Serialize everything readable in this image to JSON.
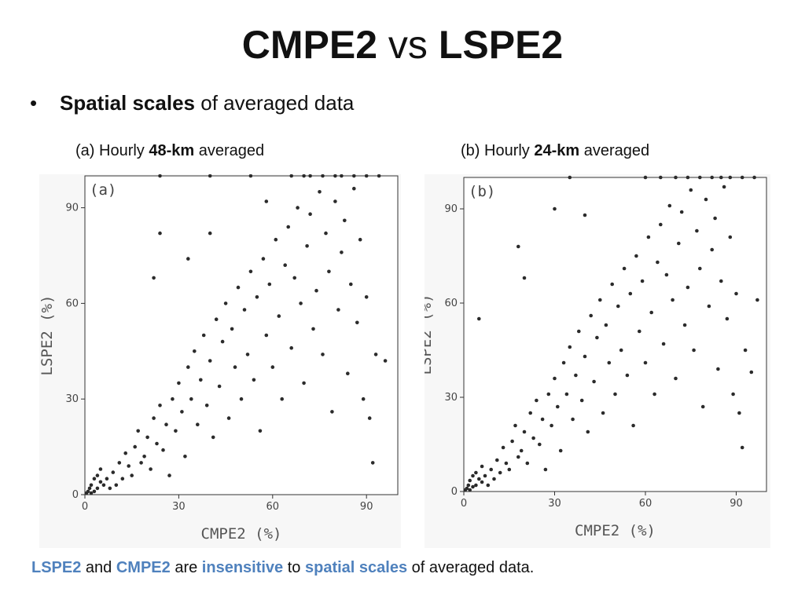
{
  "slide": {
    "title_a": "CMPE2",
    "title_vs": "vs",
    "title_b": "LSPE2",
    "bullet_symbol": "•",
    "bullet_bold": "Spatial scales",
    "bullet_rest": "of averaged data",
    "sub_a_pre": "(a) Hourly",
    "sub_a_bold": "48-km",
    "sub_a_post": "averaged",
    "sub_b_pre": "(b) Hourly",
    "sub_b_bold": "24-km",
    "sub_b_post": "averaged",
    "footer": {
      "w1": "LSPE2",
      "w2": "and",
      "w3": "CMPE2",
      "w4": "are",
      "w5": "insensitive",
      "w6": "to",
      "w7": "spatial scales",
      "w8": "of averaged data."
    },
    "accent_color": "#4f81bd"
  },
  "chart_data": [
    {
      "type": "scatter",
      "panel_label": "(a)",
      "xlabel": "CMPE2 (%)",
      "ylabel": "LSPE2 (%)",
      "xlim": [
        0,
        100
      ],
      "ylim": [
        0,
        100
      ],
      "xticks": [
        0,
        30,
        60,
        90
      ],
      "yticks": [
        0,
        30,
        60,
        90
      ],
      "grid": false,
      "points": [
        [
          0.5,
          0.5
        ],
        [
          1,
          1
        ],
        [
          2,
          0.5
        ],
        [
          3,
          1
        ],
        [
          1.5,
          2
        ],
        [
          4,
          2
        ],
        [
          2,
          3
        ],
        [
          5,
          4
        ],
        [
          3,
          5
        ],
        [
          6,
          3
        ],
        [
          4,
          6
        ],
        [
          7,
          5
        ],
        [
          8,
          2
        ],
        [
          5,
          8
        ],
        [
          10,
          3
        ],
        [
          9,
          7
        ],
        [
          11,
          10
        ],
        [
          12,
          5
        ],
        [
          14,
          9
        ],
        [
          13,
          13
        ],
        [
          15,
          6
        ],
        [
          16,
          15
        ],
        [
          18,
          10
        ],
        [
          17,
          20
        ],
        [
          19,
          12
        ],
        [
          20,
          18
        ],
        [
          21,
          8
        ],
        [
          22,
          24
        ],
        [
          23,
          16
        ],
        [
          24,
          28
        ],
        [
          25,
          14
        ],
        [
          26,
          22
        ],
        [
          27,
          6
        ],
        [
          28,
          30
        ],
        [
          29,
          20
        ],
        [
          30,
          35
        ],
        [
          31,
          26
        ],
        [
          32,
          12
        ],
        [
          33,
          40
        ],
        [
          34,
          30
        ],
        [
          35,
          45
        ],
        [
          36,
          22
        ],
        [
          37,
          36
        ],
        [
          38,
          50
        ],
        [
          39,
          28
        ],
        [
          40,
          42
        ],
        [
          41,
          18
        ],
        [
          42,
          55
        ],
        [
          43,
          34
        ],
        [
          44,
          48
        ],
        [
          45,
          60
        ],
        [
          46,
          24
        ],
        [
          47,
          52
        ],
        [
          48,
          40
        ],
        [
          49,
          65
        ],
        [
          50,
          30
        ],
        [
          51,
          58
        ],
        [
          52,
          44
        ],
        [
          53,
          70
        ],
        [
          54,
          36
        ],
        [
          55,
          62
        ],
        [
          56,
          20
        ],
        [
          57,
          74
        ],
        [
          58,
          50
        ],
        [
          59,
          66
        ],
        [
          60,
          40
        ],
        [
          61,
          80
        ],
        [
          62,
          56
        ],
        [
          63,
          30
        ],
        [
          64,
          72
        ],
        [
          65,
          84
        ],
        [
          66,
          46
        ],
        [
          67,
          68
        ],
        [
          68,
          90
        ],
        [
          69,
          60
        ],
        [
          70,
          35
        ],
        [
          71,
          78
        ],
        [
          72,
          88
        ],
        [
          73,
          52
        ],
        [
          74,
          64
        ],
        [
          75,
          95
        ],
        [
          76,
          44
        ],
        [
          77,
          82
        ],
        [
          78,
          70
        ],
        [
          79,
          26
        ],
        [
          80,
          92
        ],
        [
          81,
          58
        ],
        [
          82,
          76
        ],
        [
          83,
          86
        ],
        [
          84,
          38
        ],
        [
          85,
          66
        ],
        [
          86,
          96
        ],
        [
          87,
          54
        ],
        [
          88,
          80
        ],
        [
          89,
          30
        ],
        [
          90,
          62
        ],
        [
          91,
          24
        ],
        [
          92,
          10
        ],
        [
          93,
          44
        ],
        [
          94,
          100
        ],
        [
          96,
          42
        ],
        [
          22,
          68
        ],
        [
          24,
          82
        ],
        [
          33,
          74
        ],
        [
          40,
          82
        ],
        [
          58,
          92
        ],
        [
          66,
          100
        ],
        [
          70,
          100
        ],
        [
          72,
          100
        ],
        [
          76,
          100
        ],
        [
          80,
          100
        ],
        [
          82,
          100
        ],
        [
          86,
          100
        ],
        [
          90,
          100
        ],
        [
          24,
          100
        ],
        [
          40,
          100
        ],
        [
          53,
          100
        ]
      ]
    },
    {
      "type": "scatter",
      "panel_label": "(b)",
      "xlabel": "CMPE2 (%)",
      "ylabel": "LSPE2 (%)",
      "xlim": [
        0,
        100
      ],
      "ylim": [
        0,
        100
      ],
      "xticks": [
        0,
        30,
        60,
        90
      ],
      "yticks": [
        0,
        30,
        60,
        90
      ],
      "grid": false,
      "points": [
        [
          0.5,
          0.5
        ],
        [
          1,
          1
        ],
        [
          2,
          0.5
        ],
        [
          3,
          1.5
        ],
        [
          1.5,
          2
        ],
        [
          4,
          2
        ],
        [
          2,
          3.5
        ],
        [
          5,
          4
        ],
        [
          3,
          5
        ],
        [
          6,
          3
        ],
        [
          4,
          6
        ],
        [
          7,
          5
        ],
        [
          8,
          2
        ],
        [
          6,
          8
        ],
        [
          10,
          4
        ],
        [
          9,
          7
        ],
        [
          11,
          10
        ],
        [
          12,
          6
        ],
        [
          14,
          9
        ],
        [
          13,
          14
        ],
        [
          15,
          7
        ],
        [
          16,
          16
        ],
        [
          18,
          11
        ],
        [
          17,
          21
        ],
        [
          19,
          13
        ],
        [
          20,
          19
        ],
        [
          21,
          9
        ],
        [
          22,
          25
        ],
        [
          23,
          17
        ],
        [
          24,
          29
        ],
        [
          25,
          15
        ],
        [
          26,
          23
        ],
        [
          27,
          7
        ],
        [
          28,
          31
        ],
        [
          29,
          21
        ],
        [
          30,
          36
        ],
        [
          31,
          27
        ],
        [
          32,
          13
        ],
        [
          33,
          41
        ],
        [
          34,
          31
        ],
        [
          35,
          46
        ],
        [
          36,
          23
        ],
        [
          37,
          37
        ],
        [
          38,
          51
        ],
        [
          39,
          29
        ],
        [
          40,
          43
        ],
        [
          41,
          19
        ],
        [
          42,
          56
        ],
        [
          43,
          35
        ],
        [
          44,
          49
        ],
        [
          45,
          61
        ],
        [
          46,
          25
        ],
        [
          47,
          53
        ],
        [
          48,
          41
        ],
        [
          49,
          66
        ],
        [
          50,
          31
        ],
        [
          51,
          59
        ],
        [
          52,
          45
        ],
        [
          53,
          71
        ],
        [
          54,
          37
        ],
        [
          55,
          63
        ],
        [
          56,
          21
        ],
        [
          57,
          75
        ],
        [
          58,
          51
        ],
        [
          59,
          67
        ],
        [
          60,
          41
        ],
        [
          61,
          81
        ],
        [
          62,
          57
        ],
        [
          63,
          31
        ],
        [
          64,
          73
        ],
        [
          65,
          85
        ],
        [
          66,
          47
        ],
        [
          67,
          69
        ],
        [
          68,
          91
        ],
        [
          69,
          61
        ],
        [
          70,
          36
        ],
        [
          71,
          79
        ],
        [
          72,
          89
        ],
        [
          73,
          53
        ],
        [
          74,
          65
        ],
        [
          75,
          96
        ],
        [
          76,
          45
        ],
        [
          77,
          83
        ],
        [
          78,
          71
        ],
        [
          79,
          27
        ],
        [
          80,
          93
        ],
        [
          81,
          59
        ],
        [
          82,
          77
        ],
        [
          83,
          87
        ],
        [
          84,
          39
        ],
        [
          85,
          67
        ],
        [
          86,
          97
        ],
        [
          87,
          55
        ],
        [
          88,
          81
        ],
        [
          89,
          31
        ],
        [
          90,
          63
        ],
        [
          91,
          25
        ],
        [
          92,
          14
        ],
        [
          93,
          45
        ],
        [
          95,
          38
        ],
        [
          97,
          61
        ],
        [
          5,
          55
        ],
        [
          18,
          78
        ],
        [
          20,
          68
        ],
        [
          30,
          90
        ],
        [
          40,
          88
        ],
        [
          65,
          100
        ],
        [
          70,
          100
        ],
        [
          74,
          100
        ],
        [
          78,
          100
        ],
        [
          82,
          100
        ],
        [
          85,
          100
        ],
        [
          88,
          100
        ],
        [
          92,
          100
        ],
        [
          96,
          100
        ],
        [
          35,
          100
        ],
        [
          60,
          100
        ]
      ]
    }
  ]
}
